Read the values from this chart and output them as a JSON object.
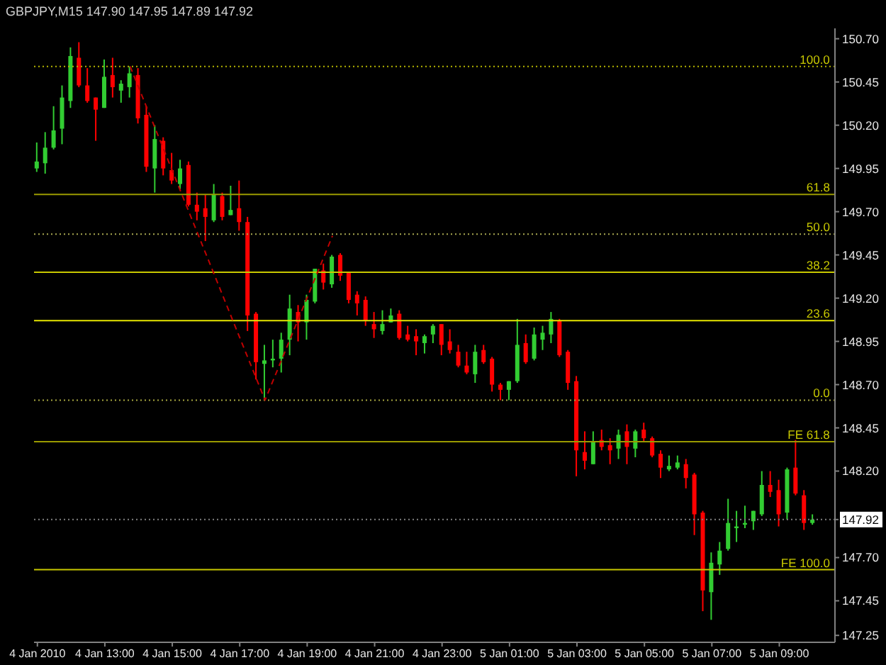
{
  "chart_data": {
    "type": "candlestick",
    "title": "GBPJPY,M15 147.90 147.95 147.89 147.92",
    "xlim": [
      "2010-01-04T10:54",
      "2010-01-05T10:39"
    ],
    "xticks": [
      {
        "value": "2010-01-04T11:00",
        "label": "4 Jan 2010"
      },
      {
        "value": "2010-01-04T13:00",
        "label": "4 Jan 13:00"
      },
      {
        "value": "2010-01-04T15:00",
        "label": "4 Jan 15:00"
      },
      {
        "value": "2010-01-04T17:00",
        "label": "4 Jan 17:00"
      },
      {
        "value": "2010-01-04T19:00",
        "label": "4 Jan 19:00"
      },
      {
        "value": "2010-01-04T21:00",
        "label": "4 Jan 21:00"
      },
      {
        "value": "2010-01-04T23:00",
        "label": "4 Jan 23:00"
      },
      {
        "value": "2010-01-05T01:00",
        "label": "5 Jan 01:00"
      },
      {
        "value": "2010-01-05T03:00",
        "label": "5 Jan 03:00"
      },
      {
        "value": "2010-01-05T05:00",
        "label": "5 Jan 05:00"
      },
      {
        "value": "2010-01-05T07:00",
        "label": "5 Jan 07:00"
      },
      {
        "value": "2010-01-05T09:00",
        "label": "5 Jan 09:00"
      }
    ],
    "ylim": [
      147.21,
      150.76
    ],
    "yticks": [
      {
        "value": 150.7,
        "label": "150.70"
      },
      {
        "value": 150.45,
        "label": "150.45"
      },
      {
        "value": 150.2,
        "label": "150.20"
      },
      {
        "value": 149.95,
        "label": "149.95"
      },
      {
        "value": 149.7,
        "label": "149.70"
      },
      {
        "value": 149.45,
        "label": "149.45"
      },
      {
        "value": 149.2,
        "label": "149.20"
      },
      {
        "value": 148.95,
        "label": "148.95"
      },
      {
        "value": 148.7,
        "label": "148.70"
      },
      {
        "value": 148.45,
        "label": "148.45"
      },
      {
        "value": 148.2,
        "label": "148.20"
      },
      {
        "value": 147.92,
        "label": "147.92"
      },
      {
        "value": 147.7,
        "label": "147.70"
      },
      {
        "value": 147.45,
        "label": "147.45"
      },
      {
        "value": 147.25,
        "label": "147.25"
      }
    ],
    "ref_lines": [
      {
        "axis": "y",
        "value": 150.54,
        "color": "#b4b400",
        "line_style": "dotted"
      },
      {
        "axis": "y",
        "value": 149.8,
        "color": "#9a9a00",
        "line_style": "solid"
      },
      {
        "axis": "y",
        "value": 149.57,
        "color": "#a8a850",
        "line_style": "dotted"
      },
      {
        "axis": "y",
        "value": 149.35,
        "color": "#c8c800",
        "line_style": "solid"
      },
      {
        "axis": "y",
        "value": 149.07,
        "color": "#e6e600",
        "line_style": "solid"
      },
      {
        "axis": "y",
        "value": 148.61,
        "color": "#a8a840",
        "line_style": "dotted"
      },
      {
        "axis": "y",
        "value": 148.37,
        "color": "#9a9a00",
        "line_style": "solid"
      },
      {
        "axis": "y",
        "value": 147.63,
        "color": "#c8c800",
        "line_style": "solid"
      },
      {
        "axis": "y",
        "value": 147.92,
        "color": "#808080",
        "line_style": "dotted"
      }
    ],
    "annotations": [
      {
        "text": "100.0",
        "x": "2010-01-05T10:30",
        "y": 150.54
      },
      {
        "text": "61.8",
        "x": "2010-01-05T10:30",
        "y": 149.8
      },
      {
        "text": "50.0",
        "x": "2010-01-05T10:30",
        "y": 149.57
      },
      {
        "text": "38.2",
        "x": "2010-01-05T10:30",
        "y": 149.35
      },
      {
        "text": "23.6",
        "x": "2010-01-05T10:30",
        "y": 149.07
      },
      {
        "text": "0.0",
        "x": "2010-01-05T10:30",
        "y": 148.61
      },
      {
        "text": "FE 61.8",
        "x": "2010-01-05T10:30",
        "y": 148.37
      },
      {
        "text": "FE 100.0",
        "x": "2010-01-05T10:30",
        "y": 147.63
      }
    ],
    "series": [
      {
        "type": "line",
        "x": [
          "2010-01-04T13:45",
          "2010-01-04T17:45",
          "2010-01-04T19:45"
        ],
        "values": [
          150.54,
          148.61,
          149.56
        ],
        "color": "#c00000",
        "line_style": "dashed"
      },
      {
        "x": [
          "2010-01-04T11:00",
          "2010-01-04T11:15",
          "2010-01-04T11:30",
          "2010-01-04T11:45",
          "2010-01-04T12:00",
          "2010-01-04T12:15",
          "2010-01-04T12:30",
          "2010-01-04T12:45",
          "2010-01-04T13:00",
          "2010-01-04T13:15",
          "2010-01-04T13:30",
          "2010-01-04T13:45",
          "2010-01-04T14:00",
          "2010-01-04T14:15",
          "2010-01-04T14:30",
          "2010-01-04T14:45",
          "2010-01-04T15:00",
          "2010-01-04T15:15",
          "2010-01-04T15:30",
          "2010-01-04T15:45",
          "2010-01-04T16:00",
          "2010-01-04T16:15",
          "2010-01-04T16:30",
          "2010-01-04T16:45",
          "2010-01-04T17:00",
          "2010-01-04T17:15",
          "2010-01-04T17:30",
          "2010-01-04T17:45",
          "2010-01-04T18:00",
          "2010-01-04T18:15",
          "2010-01-04T18:30",
          "2010-01-04T18:45",
          "2010-01-04T19:00",
          "2010-01-04T19:15",
          "2010-01-04T19:30",
          "2010-01-04T19:45",
          "2010-01-04T20:00",
          "2010-01-04T20:15",
          "2010-01-04T20:30",
          "2010-01-04T20:45",
          "2010-01-04T21:00",
          "2010-01-04T21:15",
          "2010-01-04T21:30",
          "2010-01-04T21:45",
          "2010-01-04T22:00",
          "2010-01-04T22:15",
          "2010-01-04T22:30",
          "2010-01-04T22:45",
          "2010-01-04T23:00",
          "2010-01-04T23:15",
          "2010-01-04T23:30",
          "2010-01-04T23:45",
          "2010-01-05T00:00",
          "2010-01-05T00:15",
          "2010-01-05T00:30",
          "2010-01-05T00:45",
          "2010-01-05T01:00",
          "2010-01-05T01:15",
          "2010-01-05T01:30",
          "2010-01-05T01:45",
          "2010-01-05T02:00",
          "2010-01-05T02:15",
          "2010-01-05T02:30",
          "2010-01-05T02:45",
          "2010-01-05T03:00",
          "2010-01-05T03:15",
          "2010-01-05T03:30",
          "2010-01-05T03:45",
          "2010-01-05T04:00",
          "2010-01-05T04:15",
          "2010-01-05T04:30",
          "2010-01-05T04:45",
          "2010-01-05T05:00",
          "2010-01-05T05:15",
          "2010-01-05T05:30",
          "2010-01-05T05:45",
          "2010-01-05T06:00",
          "2010-01-05T06:15",
          "2010-01-05T06:30",
          "2010-01-05T06:45",
          "2010-01-05T07:00",
          "2010-01-05T07:15",
          "2010-01-05T07:30",
          "2010-01-05T07:45",
          "2010-01-05T08:00",
          "2010-01-05T08:15",
          "2010-01-05T08:30",
          "2010-01-05T08:45",
          "2010-01-05T09:00",
          "2010-01-05T09:15",
          "2010-01-05T09:30",
          "2010-01-05T09:45",
          "2010-01-05T10:00"
        ],
        "ohlc": [
          [
            149.95,
            150.1,
            149.93,
            149.99
          ],
          [
            149.98,
            150.16,
            149.92,
            150.07
          ],
          [
            150.07,
            150.31,
            150.06,
            150.17
          ],
          [
            150.18,
            150.43,
            150.09,
            150.36
          ],
          [
            150.34,
            150.65,
            150.3,
            150.6
          ],
          [
            150.59,
            150.68,
            150.42,
            150.43
          ],
          [
            150.43,
            150.53,
            150.33,
            150.34
          ],
          [
            150.36,
            150.36,
            150.11,
            150.29
          ],
          [
            150.3,
            150.58,
            150.3,
            150.48
          ],
          [
            150.49,
            150.59,
            150.36,
            150.42
          ],
          [
            150.4,
            150.46,
            150.33,
            150.44
          ],
          [
            150.42,
            150.54,
            150.36,
            150.5
          ],
          [
            150.49,
            150.53,
            150.21,
            150.24
          ],
          [
            150.26,
            150.31,
            149.93,
            149.96
          ],
          [
            149.95,
            150.2,
            149.81,
            150.12
          ],
          [
            150.11,
            150.13,
            149.91,
            149.95
          ],
          [
            149.94,
            150.04,
            149.86,
            149.88
          ],
          [
            149.86,
            150.0,
            149.83,
            149.95
          ],
          [
            149.97,
            149.99,
            149.73,
            149.74
          ],
          [
            149.74,
            149.81,
            149.65,
            149.7
          ],
          [
            149.72,
            149.8,
            149.53,
            149.67
          ],
          [
            149.65,
            149.86,
            149.64,
            149.8
          ],
          [
            149.79,
            149.81,
            149.65,
            149.67
          ],
          [
            149.68,
            149.85,
            149.68,
            149.71
          ],
          [
            149.72,
            149.88,
            149.59,
            149.64
          ],
          [
            149.64,
            149.67,
            149.01,
            149.1
          ],
          [
            149.11,
            149.12,
            148.73,
            148.83
          ],
          [
            148.82,
            148.93,
            148.61,
            148.84
          ],
          [
            148.84,
            148.96,
            148.8,
            148.85
          ],
          [
            148.85,
            149.0,
            148.77,
            148.96
          ],
          [
            148.96,
            149.22,
            148.87,
            149.14
          ],
          [
            149.12,
            149.16,
            148.95,
            149.06
          ],
          [
            149.06,
            149.22,
            148.96,
            149.19
          ],
          [
            149.18,
            149.37,
            149.17,
            149.37
          ],
          [
            149.36,
            149.4,
            149.25,
            149.29
          ],
          [
            149.28,
            149.45,
            149.26,
            149.44
          ],
          [
            149.45,
            149.46,
            149.3,
            149.33
          ],
          [
            149.35,
            149.35,
            149.17,
            149.19
          ],
          [
            149.22,
            149.24,
            149.1,
            149.17
          ],
          [
            149.19,
            149.21,
            149.04,
            149.07
          ],
          [
            149.05,
            149.12,
            148.97,
            149.02
          ],
          [
            149.01,
            149.13,
            148.99,
            149.05
          ],
          [
            149.06,
            149.14,
            149.06,
            149.1
          ],
          [
            149.11,
            149.13,
            148.96,
            148.97
          ],
          [
            148.99,
            149.04,
            148.95,
            148.96
          ],
          [
            148.98,
            149.02,
            148.87,
            148.95
          ],
          [
            148.94,
            148.99,
            148.88,
            148.98
          ],
          [
            148.99,
            149.05,
            148.94,
            149.04
          ],
          [
            149.05,
            149.05,
            148.87,
            148.93
          ],
          [
            148.95,
            149.02,
            148.88,
            148.9
          ],
          [
            148.89,
            148.93,
            148.8,
            148.81
          ],
          [
            148.81,
            148.89,
            148.76,
            148.77
          ],
          [
            148.76,
            148.93,
            148.71,
            148.89
          ],
          [
            148.9,
            148.93,
            148.82,
            148.83
          ],
          [
            148.85,
            148.86,
            148.66,
            148.7
          ],
          [
            148.7,
            148.71,
            148.61,
            148.67
          ],
          [
            148.67,
            148.72,
            148.61,
            148.72
          ],
          [
            148.72,
            149.08,
            148.71,
            148.93
          ],
          [
            148.94,
            148.99,
            148.82,
            148.83
          ],
          [
            148.85,
            149.03,
            148.84,
            148.99
          ],
          [
            148.96,
            149.04,
            148.9,
            149.0
          ],
          [
            148.99,
            149.12,
            148.94,
            149.08
          ],
          [
            149.07,
            149.08,
            148.86,
            148.87
          ],
          [
            148.89,
            148.9,
            148.67,
            148.71
          ],
          [
            148.72,
            148.75,
            148.17,
            148.32
          ],
          [
            148.31,
            148.43,
            148.21,
            148.26
          ],
          [
            148.24,
            148.43,
            148.24,
            148.37
          ],
          [
            148.38,
            148.44,
            148.32,
            148.34
          ],
          [
            148.35,
            148.39,
            148.24,
            148.32
          ],
          [
            148.33,
            148.44,
            148.27,
            148.41
          ],
          [
            148.43,
            148.47,
            148.24,
            148.34
          ],
          [
            148.33,
            148.44,
            148.28,
            148.43
          ],
          [
            148.44,
            148.48,
            148.37,
            148.39
          ],
          [
            148.39,
            148.4,
            148.28,
            148.29
          ],
          [
            148.3,
            148.32,
            148.16,
            148.22
          ],
          [
            148.21,
            148.29,
            148.2,
            148.23
          ],
          [
            148.22,
            148.29,
            148.21,
            148.25
          ],
          [
            148.24,
            148.27,
            148.1,
            148.16
          ],
          [
            148.18,
            148.19,
            147.83,
            147.95
          ],
          [
            147.96,
            147.97,
            147.39,
            147.51
          ],
          [
            147.5,
            147.73,
            147.34,
            147.67
          ],
          [
            147.66,
            147.79,
            147.6,
            147.74
          ],
          [
            147.75,
            148.04,
            147.74,
            147.9
          ],
          [
            147.87,
            147.97,
            147.79,
            147.88
          ],
          [
            147.89,
            148.0,
            147.87,
            147.9
          ],
          [
            147.91,
            147.97,
            147.86,
            147.97
          ],
          [
            147.95,
            148.2,
            147.94,
            148.12
          ],
          [
            148.12,
            148.2,
            148.05,
            148.08
          ],
          [
            148.09,
            148.15,
            147.88,
            147.95
          ],
          [
            147.96,
            148.22,
            147.92,
            148.21
          ],
          [
            148.22,
            148.38,
            148.06,
            148.07
          ],
          [
            148.06,
            148.09,
            147.86,
            147.9
          ],
          [
            147.9,
            147.95,
            147.89,
            147.92
          ]
        ],
        "colors": [
          "#32cd32",
          "#32cd32",
          "#32cd32",
          "#32cd32",
          "#32cd32",
          "#ff0000",
          "#ff0000",
          "#ff0000",
          "#32cd32",
          "#ff0000",
          "#32cd32",
          "#32cd32",
          "#ff0000",
          "#ff0000",
          "#32cd32",
          "#ff0000",
          "#ff0000",
          "#32cd32",
          "#ff0000",
          "#ff0000",
          "#ff0000",
          "#32cd32",
          "#ff0000",
          "#32cd32",
          "#ff0000",
          "#ff0000",
          "#ff0000",
          "#32cd32",
          "#32cd32",
          "#32cd32",
          "#32cd32",
          "#ff0000",
          "#32cd32",
          "#32cd32",
          "#ff0000",
          "#32cd32",
          "#ff0000",
          "#ff0000",
          "#ff0000",
          "#ff0000",
          "#ff0000",
          "#32cd32",
          "#32cd32",
          "#ff0000",
          "#ff0000",
          "#ff0000",
          "#32cd32",
          "#32cd32",
          "#ff0000",
          "#ff0000",
          "#ff0000",
          "#ff0000",
          "#32cd32",
          "#ff0000",
          "#ff0000",
          "#ff0000",
          "#32cd32",
          "#32cd32",
          "#ff0000",
          "#32cd32",
          "#32cd32",
          "#32cd32",
          "#ff0000",
          "#ff0000",
          "#ff0000",
          "#ff0000",
          "#32cd32",
          "#ff0000",
          "#ff0000",
          "#32cd32",
          "#ff0000",
          "#32cd32",
          "#ff0000",
          "#ff0000",
          "#ff0000",
          "#32cd32",
          "#32cd32",
          "#ff0000",
          "#ff0000",
          "#ff0000",
          "#32cd32",
          "#32cd32",
          "#32cd32",
          "#32cd32",
          "#32cd32",
          "#32cd32",
          "#32cd32",
          "#ff0000",
          "#ff0000",
          "#32cd32",
          "#ff0000",
          "#ff0000",
          "#32cd32"
        ]
      }
    ]
  }
}
